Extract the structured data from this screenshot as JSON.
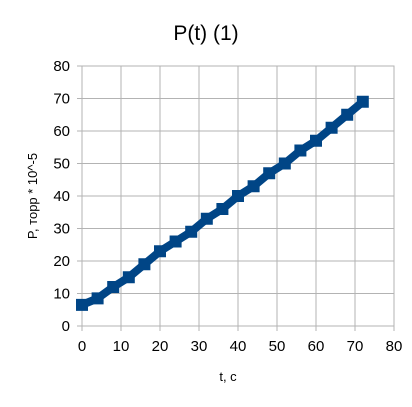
{
  "chart_data": {
    "type": "line",
    "title": "P(t) (1)",
    "xlabel": "t, c",
    "ylabel": "P, торр * 10^-5",
    "xlim": [
      0,
      80
    ],
    "ylim": [
      0,
      80
    ],
    "xticks": [
      0,
      10,
      20,
      30,
      40,
      50,
      60,
      70,
      80
    ],
    "yticks": [
      0,
      10,
      20,
      30,
      40,
      50,
      60,
      70,
      80
    ],
    "grid": true,
    "legend": "none",
    "series": [
      {
        "color": "#004586",
        "marker": "square",
        "x": [
          0,
          4,
          8,
          12,
          16,
          20,
          24,
          28,
          32,
          36,
          40,
          44,
          48,
          52,
          56,
          60,
          64,
          68,
          72
        ],
        "y": [
          6.5,
          8.5,
          12,
          15,
          19,
          23,
          26,
          29,
          33,
          36,
          40,
          43,
          47,
          50,
          54,
          57,
          61,
          65,
          69
        ]
      }
    ]
  }
}
